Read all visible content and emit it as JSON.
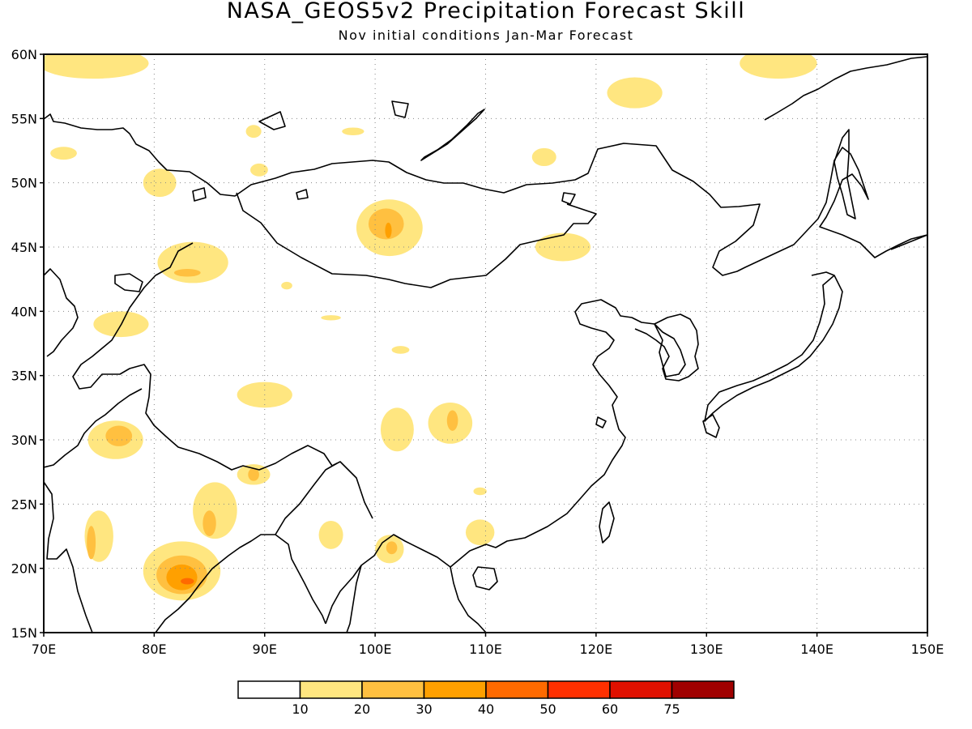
{
  "header": {
    "title": "NASA_GEOS5v2 Precipitation Forecast Skill",
    "subtitle": "Nov initial conditions  Jan-Mar Forecast"
  },
  "map": {
    "lon_range": [
      70,
      150
    ],
    "lat_range": [
      15,
      60
    ],
    "lon_ticks": [
      {
        "value": 70,
        "label": "70E"
      },
      {
        "value": 80,
        "label": "80E"
      },
      {
        "value": 90,
        "label": "90E"
      },
      {
        "value": 100,
        "label": "100E"
      },
      {
        "value": 110,
        "label": "110E"
      },
      {
        "value": 120,
        "label": "120E"
      },
      {
        "value": 130,
        "label": "130E"
      },
      {
        "value": 140,
        "label": "140E"
      },
      {
        "value": 150,
        "label": "150E"
      }
    ],
    "lat_ticks": [
      {
        "value": 15,
        "label": "15N"
      },
      {
        "value": 20,
        "label": "20N"
      },
      {
        "value": 25,
        "label": "25N"
      },
      {
        "value": 30,
        "label": "30N"
      },
      {
        "value": 35,
        "label": "35N"
      },
      {
        "value": 40,
        "label": "40N"
      },
      {
        "value": 45,
        "label": "45N"
      },
      {
        "value": 50,
        "label": "50N"
      },
      {
        "value": 55,
        "label": "55N"
      },
      {
        "value": 60,
        "label": "60N"
      }
    ],
    "grid": true,
    "skill_regions": [
      {
        "lon": 74.5,
        "lat": 59.3,
        "rlon": 5.0,
        "rlat": 1.2,
        "level": 1
      },
      {
        "lon": 136.5,
        "lat": 59.3,
        "rlon": 3.5,
        "rlat": 1.2,
        "level": 1
      },
      {
        "lon": 123.5,
        "lat": 57.0,
        "rlon": 2.5,
        "rlat": 1.2,
        "level": 1
      },
      {
        "lon": 71.8,
        "lat": 52.3,
        "rlon": 1.2,
        "rlat": 0.5,
        "level": 1
      },
      {
        "lon": 80.5,
        "lat": 50.0,
        "rlon": 1.5,
        "rlat": 1.1,
        "level": 1
      },
      {
        "lon": 89.0,
        "lat": 54.0,
        "rlon": 0.7,
        "rlat": 0.5,
        "level": 1
      },
      {
        "lon": 98.0,
        "lat": 54.0,
        "rlon": 1.0,
        "rlat": 0.3,
        "level": 1
      },
      {
        "lon": 89.5,
        "lat": 51.0,
        "rlon": 0.8,
        "rlat": 0.5,
        "level": 1
      },
      {
        "lon": 115.3,
        "lat": 52.0,
        "rlon": 1.1,
        "rlat": 0.7,
        "level": 1
      },
      {
        "lon": 101.3,
        "lat": 46.5,
        "rlon": 3.0,
        "rlat": 2.2,
        "level": 1
      },
      {
        "lon": 101.0,
        "lat": 46.8,
        "rlon": 1.6,
        "rlat": 1.2,
        "level": 2
      },
      {
        "lon": 101.2,
        "lat": 46.3,
        "rlon": 0.3,
        "rlat": 0.6,
        "level": 3
      },
      {
        "lon": 117.0,
        "lat": 45.0,
        "rlon": 2.5,
        "rlat": 1.1,
        "level": 1
      },
      {
        "lon": 83.5,
        "lat": 43.8,
        "rlon": 3.2,
        "rlat": 1.6,
        "level": 1
      },
      {
        "lon": 83.0,
        "lat": 43.0,
        "rlon": 1.2,
        "rlat": 0.3,
        "level": 2
      },
      {
        "lon": 77.0,
        "lat": 39.0,
        "rlon": 2.5,
        "rlat": 1.0,
        "level": 1
      },
      {
        "lon": 92.0,
        "lat": 42.0,
        "rlon": 0.5,
        "rlat": 0.3,
        "level": 1
      },
      {
        "lon": 96.0,
        "lat": 39.5,
        "rlon": 0.9,
        "rlat": 0.2,
        "level": 1
      },
      {
        "lon": 102.3,
        "lat": 37.0,
        "rlon": 0.8,
        "rlat": 0.3,
        "level": 1
      },
      {
        "lon": 90.0,
        "lat": 33.5,
        "rlon": 2.5,
        "rlat": 1.0,
        "level": 1
      },
      {
        "lon": 102.0,
        "lat": 30.8,
        "rlon": 1.5,
        "rlat": 1.7,
        "level": 1
      },
      {
        "lon": 106.8,
        "lat": 31.3,
        "rlon": 2.0,
        "rlat": 1.6,
        "level": 1
      },
      {
        "lon": 107.0,
        "lat": 31.5,
        "rlon": 0.5,
        "rlat": 0.8,
        "level": 2
      },
      {
        "lon": 109.5,
        "lat": 26.0,
        "rlon": 0.6,
        "rlat": 0.3,
        "level": 1
      },
      {
        "lon": 76.5,
        "lat": 30.0,
        "rlon": 2.5,
        "rlat": 1.5,
        "level": 1
      },
      {
        "lon": 76.8,
        "lat": 30.3,
        "rlon": 1.2,
        "rlat": 0.8,
        "level": 2
      },
      {
        "lon": 89.0,
        "lat": 27.3,
        "rlon": 1.5,
        "rlat": 0.8,
        "level": 1
      },
      {
        "lon": 89.0,
        "lat": 27.3,
        "rlon": 0.5,
        "rlat": 0.5,
        "level": 2
      },
      {
        "lon": 85.5,
        "lat": 24.5,
        "rlon": 2.0,
        "rlat": 2.2,
        "level": 1
      },
      {
        "lon": 85.0,
        "lat": 23.5,
        "rlon": 0.6,
        "rlat": 1.0,
        "level": 2
      },
      {
        "lon": 75.0,
        "lat": 22.5,
        "rlon": 1.3,
        "rlat": 2.0,
        "level": 1
      },
      {
        "lon": 74.3,
        "lat": 22.0,
        "rlon": 0.4,
        "rlat": 1.3,
        "level": 2
      },
      {
        "lon": 82.5,
        "lat": 19.8,
        "rlon": 3.5,
        "rlat": 2.3,
        "level": 1
      },
      {
        "lon": 82.5,
        "lat": 19.5,
        "rlon": 2.3,
        "rlat": 1.5,
        "level": 2
      },
      {
        "lon": 82.5,
        "lat": 19.3,
        "rlon": 1.4,
        "rlat": 1.0,
        "level": 3
      },
      {
        "lon": 83.0,
        "lat": 19.0,
        "rlon": 0.6,
        "rlat": 0.25,
        "level": 4
      },
      {
        "lon": 96.0,
        "lat": 22.6,
        "rlon": 1.1,
        "rlat": 1.1,
        "level": 1
      },
      {
        "lon": 101.3,
        "lat": 21.5,
        "rlon": 1.3,
        "rlat": 1.1,
        "level": 1
      },
      {
        "lon": 101.5,
        "lat": 21.6,
        "rlon": 0.5,
        "rlat": 0.5,
        "level": 2
      },
      {
        "lon": 109.5,
        "lat": 22.8,
        "rlon": 1.3,
        "rlat": 1.0,
        "level": 1
      }
    ]
  },
  "colorbar": {
    "colors": [
      "#ffffff",
      "#ffe680",
      "#ffc040",
      "#ffa000",
      "#ff6a00",
      "#ff3000",
      "#e01000",
      "#a00000"
    ],
    "labels": [
      "10",
      "20",
      "30",
      "40",
      "50",
      "60",
      "75"
    ]
  }
}
